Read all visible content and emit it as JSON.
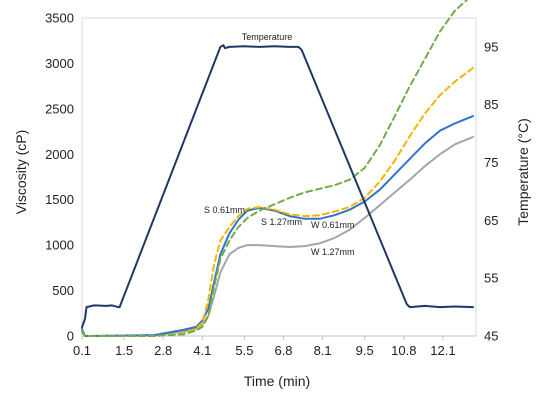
{
  "chart_data": {
    "type": "line",
    "title": "",
    "xlabel": "Time (min)",
    "ylabel": "Viscosity (cP)",
    "y2label": "Temperature (°C)",
    "xlim": [
      0.1,
      13.2
    ],
    "ylim": [
      0,
      3500
    ],
    "y2lim": [
      45,
      100
    ],
    "x_ticks": [
      "0.1",
      "1.5",
      "2.8",
      "4.1",
      "5.5",
      "6.8",
      "8.1",
      "9.5",
      "10.8",
      "12.1"
    ],
    "y_ticks": [
      "0",
      "500",
      "1000",
      "1500",
      "2000",
      "2500",
      "3000",
      "3500"
    ],
    "y2_ticks": [
      "45",
      "55",
      "65",
      "75",
      "85",
      "95"
    ],
    "grid": false,
    "legend": "none",
    "series": [
      {
        "name": "Temperature",
        "axis": "right",
        "color": "#1f3864",
        "dash": "solid",
        "x": [
          0.1,
          0.2,
          0.25,
          0.5,
          0.9,
          1.1,
          1.3,
          1.35,
          4.7,
          4.8,
          4.85,
          5.0,
          5.5,
          6.0,
          6.5,
          7.0,
          7.3,
          7.4,
          10.9,
          11.0,
          11.5,
          12.0,
          12.5,
          13.1
        ],
        "values": [
          46.5,
          48.0,
          50.0,
          50.3,
          50.2,
          50.3,
          50.0,
          50.0,
          95.0,
          95.3,
          94.8,
          95.0,
          95.1,
          95.0,
          95.1,
          95.0,
          95.0,
          94.5,
          50.5,
          50.0,
          50.2,
          50.0,
          50.1,
          50.0
        ],
        "label": "Temperature"
      },
      {
        "name": "S 0.61mm",
        "axis": "left",
        "color": "#f4b400",
        "dash": "dashed",
        "x": [
          0.1,
          0.2,
          0.3,
          2.5,
          3.5,
          3.9,
          4.1,
          4.3,
          4.5,
          4.7,
          5.0,
          5.3,
          5.6,
          6.0,
          6.5,
          7.0,
          7.5,
          8.0,
          8.5,
          9.0,
          9.5,
          10.0,
          10.5,
          11.0,
          11.5,
          12.0,
          12.5,
          13.1
        ],
        "values": [
          60,
          0,
          0,
          0,
          30,
          80,
          150,
          400,
          800,
          1050,
          1200,
          1320,
          1400,
          1420,
          1390,
          1340,
          1320,
          1330,
          1370,
          1420,
          1520,
          1700,
          1930,
          2200,
          2450,
          2650,
          2800,
          2950
        ],
        "label": "S 0.61mm"
      },
      {
        "name": "S 1.27mm",
        "axis": "left",
        "color": "#70ad47",
        "dash": "dashed",
        "x": [
          0.1,
          0.2,
          0.3,
          2.5,
          3.5,
          3.9,
          4.1,
          4.3,
          4.5,
          4.7,
          5.0,
          5.3,
          5.6,
          6.0,
          6.5,
          7.0,
          7.5,
          8.0,
          8.5,
          9.0,
          9.5,
          10.0,
          10.5,
          11.0,
          11.5,
          12.0,
          12.5,
          13.1
        ],
        "values": [
          60,
          0,
          0,
          0,
          20,
          60,
          100,
          220,
          550,
          850,
          1050,
          1200,
          1300,
          1380,
          1450,
          1520,
          1580,
          1620,
          1660,
          1720,
          1850,
          2100,
          2420,
          2750,
          3050,
          3350,
          3580,
          3760
        ],
        "label": "S 1.27mm"
      },
      {
        "name": "W 0.61mm",
        "axis": "left",
        "color": "#2f75c9",
        "dash": "solid",
        "x": [
          0.1,
          0.2,
          0.3,
          2.5,
          3.5,
          3.9,
          4.1,
          4.3,
          4.5,
          4.7,
          5.0,
          5.3,
          5.6,
          6.0,
          6.5,
          7.0,
          7.5,
          8.0,
          8.5,
          9.0,
          9.5,
          10.0,
          10.5,
          11.0,
          11.5,
          12.0,
          12.5,
          13.1
        ],
        "values": [
          80,
          0,
          0,
          10,
          70,
          100,
          170,
          300,
          600,
          900,
          1130,
          1280,
          1380,
          1410,
          1380,
          1320,
          1290,
          1290,
          1330,
          1390,
          1480,
          1610,
          1780,
          1950,
          2120,
          2260,
          2340,
          2420
        ],
        "label": "W 0.61mm"
      },
      {
        "name": "W 1.27mm",
        "axis": "left",
        "color": "#a5a5a5",
        "dash": "solid",
        "x": [
          0.1,
          0.2,
          0.3,
          2.5,
          3.5,
          3.9,
          4.1,
          4.3,
          4.5,
          4.7,
          5.0,
          5.3,
          5.6,
          6.0,
          6.5,
          7.0,
          7.5,
          8.0,
          8.5,
          9.0,
          9.5,
          10.0,
          10.5,
          11.0,
          11.5,
          12.0,
          12.5,
          13.1
        ],
        "values": [
          40,
          0,
          0,
          5,
          50,
          80,
          130,
          220,
          450,
          700,
          900,
          970,
          1000,
          1000,
          990,
          980,
          990,
          1020,
          1080,
          1170,
          1300,
          1440,
          1580,
          1720,
          1870,
          2000,
          2110,
          2190
        ],
        "label": "W 1.27mm"
      }
    ]
  }
}
